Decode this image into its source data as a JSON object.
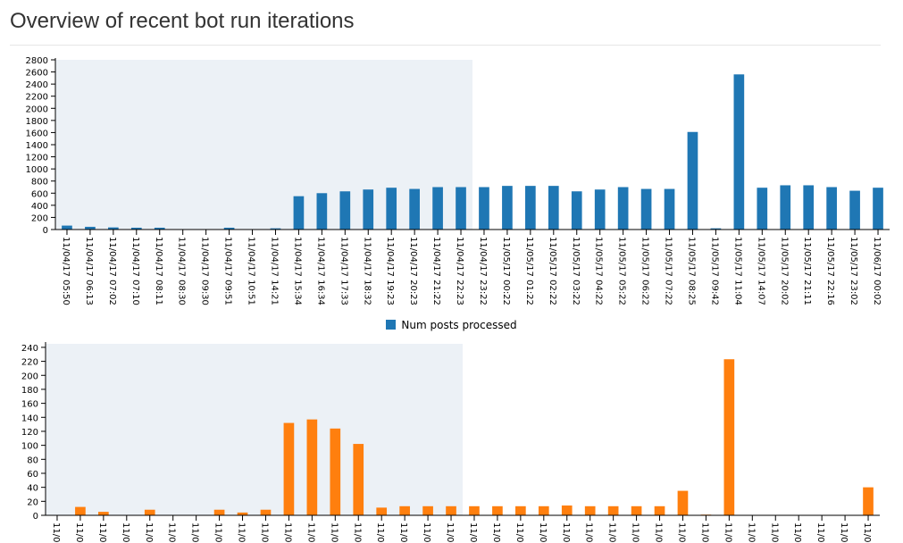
{
  "page": {
    "title": "Overview of recent bot run iterations"
  },
  "colors": {
    "series1": "#1f77b4",
    "series2": "#ff7f0e",
    "highlight": "#ecf1f6"
  },
  "chart_data": [
    {
      "type": "bar",
      "categories": [
        "11/04/17 05:50",
        "11/04/17 06:13",
        "11/04/17 07:02",
        "11/04/17 07:10",
        "11/04/17 08:11",
        "11/04/17 08:30",
        "11/04/17 09:30",
        "11/04/17 09:51",
        "11/04/17 10:51",
        "11/04/17 14:21",
        "11/04/17 15:34",
        "11/04/17 16:34",
        "11/04/17 17:33",
        "11/04/17 18:32",
        "11/04/17 19:23",
        "11/04/17 20:23",
        "11/04/17 21:22",
        "11/04/17 22:23",
        "11/04/17 23:22",
        "11/05/17 00:22",
        "11/05/17 01:22",
        "11/05/17 02:22",
        "11/05/17 03:22",
        "11/05/17 04:22",
        "11/05/17 05:22",
        "11/05/17 06:22",
        "11/05/17 07:22",
        "11/05/17 08:25",
        "11/05/17 09:42",
        "11/05/17 11:04",
        "11/05/17 14:07",
        "11/05/17 20:02",
        "11/05/17 21:11",
        "11/05/17 22:16",
        "11/05/17 23:02",
        "11/06/17 00:02"
      ],
      "series": [
        {
          "name": "Num posts processed",
          "values": [
            65,
            45,
            35,
            30,
            30,
            0,
            0,
            30,
            0,
            20,
            550,
            600,
            630,
            660,
            690,
            670,
            700,
            700,
            700,
            720,
            720,
            720,
            630,
            660,
            700,
            670,
            670,
            1610,
            20,
            2560,
            690,
            730,
            730,
            700,
            640,
            690
          ]
        }
      ],
      "ylim": [
        0,
        2800
      ],
      "yticks": [
        0,
        200,
        400,
        600,
        800,
        1000,
        1200,
        1400,
        1600,
        1800,
        2000,
        2200,
        2400,
        2600,
        2800
      ],
      "highlight_range": [
        0,
        18
      ],
      "grid": false,
      "legend": "bottom-center"
    },
    {
      "type": "bar",
      "categories": [
        "11/0",
        "11/0",
        "11/0",
        "11/0",
        "11/0",
        "11/0",
        "11/0",
        "11/0",
        "11/0",
        "11/0",
        "11/0",
        "11/0",
        "11/0",
        "11/0",
        "11/0",
        "11/0",
        "11/0",
        "11/0",
        "11/0",
        "11/0",
        "11/0",
        "11/0",
        "11/0",
        "11/0",
        "11/0",
        "11/0",
        "11/0",
        "11/0",
        "11/0",
        "11/0",
        "11/0",
        "11/0",
        "11/0",
        "11/0",
        "11/0",
        "11/0"
      ],
      "series": [
        {
          "values": [
            0,
            12,
            5,
            0,
            8,
            0,
            0,
            8,
            4,
            8,
            132,
            137,
            124,
            102,
            11,
            13,
            13,
            13,
            13,
            13,
            13,
            13,
            14,
            13,
            13,
            13,
            13,
            35,
            1,
            223,
            0,
            0,
            0,
            0,
            0,
            40
          ]
        }
      ],
      "ylim": [
        0,
        245
      ],
      "yticks": [
        0,
        20,
        40,
        60,
        80,
        100,
        120,
        140,
        160,
        180,
        200,
        220,
        240
      ],
      "highlight_range": [
        0,
        18
      ],
      "grid": false
    }
  ]
}
